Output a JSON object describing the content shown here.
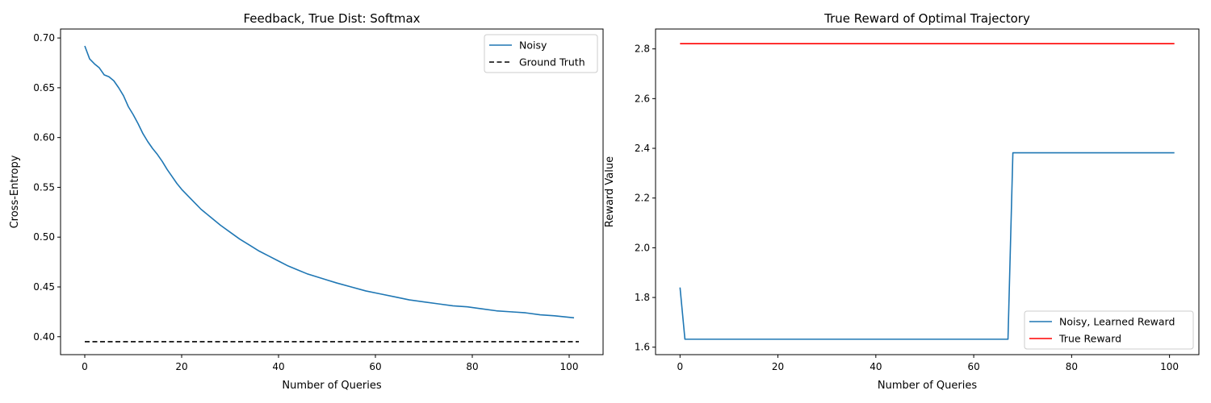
{
  "chart_data": [
    {
      "type": "line",
      "title": "Feedback, True Dist: Softmax",
      "xlabel": "Number of Queries",
      "ylabel": "Cross-Entropy",
      "xlim": [
        -5,
        107
      ],
      "ylim": [
        0.382,
        0.709
      ],
      "xticks": [
        0,
        20,
        40,
        60,
        80,
        100
      ],
      "yticks": [
        0.4,
        0.45,
        0.5,
        0.55,
        0.6,
        0.65,
        0.7
      ],
      "ytick_labels": [
        "0.40",
        "0.45",
        "0.50",
        "0.55",
        "0.60",
        "0.65",
        "0.70"
      ],
      "grid": false,
      "legend_position": "top-right",
      "series": [
        {
          "name": "Noisy",
          "color": "#1f77b4",
          "style": "solid",
          "x": [
            0,
            1,
            2,
            3,
            4,
            5,
            6,
            7,
            8,
            9,
            10,
            11,
            12,
            13,
            14,
            15,
            16,
            17,
            18,
            19,
            20,
            22,
            24,
            26,
            28,
            30,
            32,
            34,
            36,
            38,
            40,
            42,
            44,
            46,
            48,
            50,
            52,
            55,
            58,
            61,
            64,
            67,
            70,
            73,
            76,
            79,
            82,
            85,
            88,
            91,
            94,
            97,
            101
          ],
          "y": [
            0.692,
            0.679,
            0.674,
            0.67,
            0.663,
            0.661,
            0.657,
            0.65,
            0.642,
            0.631,
            0.623,
            0.614,
            0.604,
            0.596,
            0.589,
            0.583,
            0.576,
            0.568,
            0.561,
            0.554,
            0.548,
            0.538,
            0.528,
            0.52,
            0.512,
            0.505,
            0.498,
            0.492,
            0.486,
            0.481,
            0.476,
            0.471,
            0.467,
            0.463,
            0.46,
            0.457,
            0.454,
            0.45,
            0.446,
            0.443,
            0.44,
            0.437,
            0.435,
            0.433,
            0.431,
            0.43,
            0.428,
            0.426,
            0.425,
            0.424,
            0.422,
            0.421,
            0.419
          ]
        },
        {
          "name": "Ground Truth",
          "color": "#000000",
          "style": "dashed",
          "x": [
            0,
            102
          ],
          "y": [
            0.395,
            0.395
          ]
        }
      ]
    },
    {
      "type": "line",
      "title": "True Reward of Optimal Trajectory",
      "xlabel": "Number of Queries",
      "ylabel": "Reward Value",
      "xlim": [
        -5,
        106
      ],
      "ylim": [
        1.57,
        2.88
      ],
      "xticks": [
        0,
        20,
        40,
        60,
        80,
        100
      ],
      "yticks": [
        1.6,
        1.8,
        2.0,
        2.2,
        2.4,
        2.6,
        2.8
      ],
      "ytick_labels": [
        "1.6",
        "1.8",
        "2.0",
        "2.2",
        "2.4",
        "2.6",
        "2.8"
      ],
      "grid": false,
      "legend_position": "bottom-right",
      "series": [
        {
          "name": "Noisy, Learned Reward",
          "color": "#1f77b4",
          "style": "solid",
          "x": [
            0,
            1,
            67,
            68,
            101
          ],
          "y": [
            1.84,
            1.632,
            1.632,
            2.382,
            2.382
          ]
        },
        {
          "name": "True Reward",
          "color": "#ff0000",
          "style": "solid",
          "x": [
            0,
            101
          ],
          "y": [
            2.821,
            2.821
          ]
        }
      ]
    }
  ]
}
